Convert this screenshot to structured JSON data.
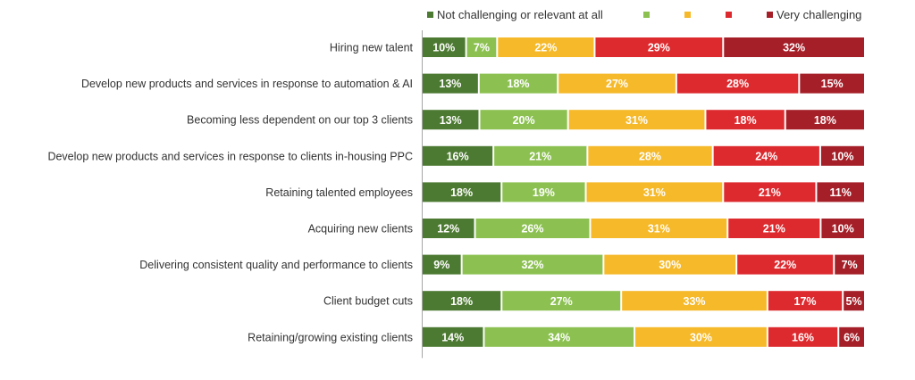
{
  "chart_data": {
    "type": "bar",
    "orientation": "horizontal",
    "stacked": true,
    "percent_stacked": true,
    "categories": [
      "Hiring new talent",
      "Develop new products and services in response to automation & AI",
      "Becoming less dependent on our top 3 clients",
      "Develop new products and services in response to clients in-housing PPC",
      "Retaining talented employees",
      "Acquiring new clients",
      "Delivering consistent quality and performance to clients",
      "Client budget cuts",
      "Retaining/growing existing clients"
    ],
    "series": [
      {
        "name": "Not challenging or relevant at all",
        "color": "#4d7a32",
        "values": [
          10,
          13,
          13,
          16,
          18,
          12,
          9,
          18,
          14
        ]
      },
      {
        "name": "",
        "color": "#8cc152",
        "values": [
          7,
          18,
          20,
          21,
          19,
          26,
          32,
          27,
          34
        ]
      },
      {
        "name": "",
        "color": "#f5b92a",
        "values": [
          22,
          27,
          31,
          28,
          31,
          31,
          30,
          33,
          30
        ]
      },
      {
        "name": "",
        "color": "#dd2a2f",
        "values": [
          29,
          28,
          18,
          24,
          21,
          21,
          22,
          17,
          16
        ]
      },
      {
        "name": "Very challenging",
        "color": "#a51f28",
        "values": [
          32,
          15,
          18,
          10,
          11,
          10,
          7,
          5,
          6
        ]
      }
    ],
    "value_suffix": "%",
    "legend_position": "top",
    "grid": false
  }
}
